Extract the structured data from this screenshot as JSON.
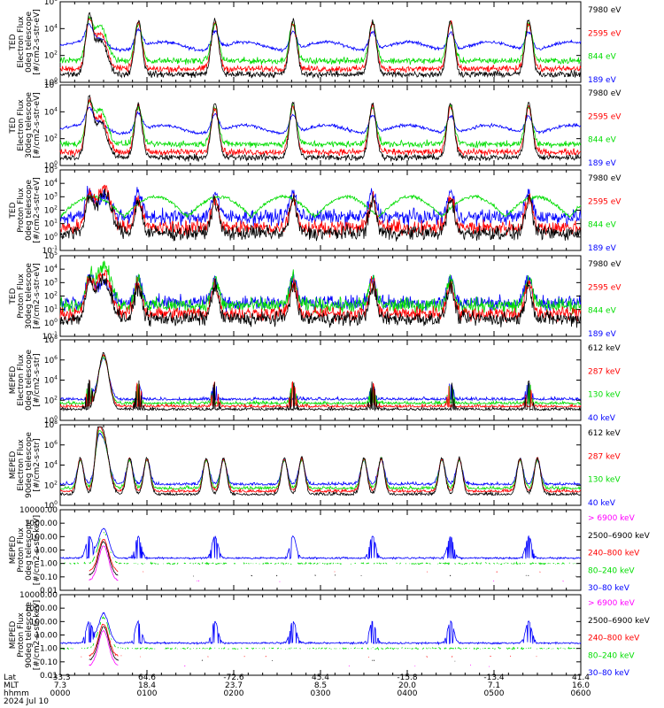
{
  "colors": {
    "black": "#000000",
    "blue": "#0000ff",
    "red": "#ff0000",
    "green": "#00dd00",
    "magenta": "#ff00ff"
  },
  "panels": [
    {
      "ylabel": [
        "TED",
        "Electron Flux",
        "0deg telescope",
        "[#/cm2-s-str-eV]"
      ],
      "scale": "log",
      "ylim_exp": [
        0,
        6
      ],
      "ticks": [
        "10^0",
        "10^2",
        "10^4",
        "10^6"
      ],
      "legend": [
        {
          "text": "7980 eV",
          "color": "#000000"
        },
        {
          "text": "2595 eV",
          "color": "#ff0000"
        },
        {
          "text": "844 eV",
          "color": "#00dd00"
        },
        {
          "text": "189 eV",
          "color": "#0000ff"
        }
      ]
    },
    {
      "ylabel": [
        "TED",
        "Electron Flux",
        "30deg telescope",
        "[#/cm2-s-str-eV]"
      ],
      "scale": "log",
      "ylim_exp": [
        0,
        6
      ],
      "ticks": [
        "10^0",
        "10^2",
        "10^4",
        "10^6"
      ],
      "legend": [
        {
          "text": "7980 eV",
          "color": "#000000"
        },
        {
          "text": "2595 eV",
          "color": "#ff0000"
        },
        {
          "text": "844 eV",
          "color": "#00dd00"
        },
        {
          "text": "189 eV",
          "color": "#0000ff"
        }
      ]
    },
    {
      "ylabel": [
        "TED",
        "Proton Flux",
        "0deg telescope",
        "[#/cm2-s-str-eV]"
      ],
      "scale": "log",
      "ylim_exp": [
        -1,
        5
      ],
      "ticks": [
        "10^-1",
        "10^0",
        "10^1",
        "10^2",
        "10^3",
        "10^4",
        "10^5"
      ],
      "legend": [
        {
          "text": "7980 eV",
          "color": "#000000"
        },
        {
          "text": "2595 eV",
          "color": "#ff0000"
        },
        {
          "text": "844 eV",
          "color": "#00dd00"
        },
        {
          "text": "189 eV",
          "color": "#0000ff"
        }
      ]
    },
    {
      "ylabel": [
        "TED",
        "Proton Flux",
        "30deg telescope",
        "[#/cm2-s-str-eV]"
      ],
      "scale": "log",
      "ylim_exp": [
        -1,
        5
      ],
      "ticks": [
        "10^-1",
        "10^0",
        "10^1",
        "10^2",
        "10^3",
        "10^4",
        "10^5"
      ],
      "legend": [
        {
          "text": "7980 eV",
          "color": "#000000"
        },
        {
          "text": "2595 eV",
          "color": "#ff0000"
        },
        {
          "text": "844 eV",
          "color": "#00dd00"
        },
        {
          "text": "189 eV",
          "color": "#0000ff"
        }
      ]
    },
    {
      "ylabel": [
        "MEPED",
        "Electron Flux",
        "0deg telescope",
        "[#/cm2-s-str]"
      ],
      "scale": "log",
      "ylim_exp": [
        0,
        8
      ],
      "ticks": [
        "10^0",
        "10^2",
        "10^4",
        "10^6",
        "10^8"
      ],
      "legend": [
        {
          "text": "612 keV",
          "color": "#000000"
        },
        {
          "text": "287 keV",
          "color": "#ff0000"
        },
        {
          "text": "130 keV",
          "color": "#00dd00"
        },
        {
          "text": "40 keV",
          "color": "#0000ff"
        }
      ]
    },
    {
      "ylabel": [
        "MEPED",
        "Electron Flux",
        "90deg telescope",
        "[#/cm2-s-str]"
      ],
      "scale": "log",
      "ylim_exp": [
        0,
        8
      ],
      "ticks": [
        "10^0",
        "10^2",
        "10^4",
        "10^6",
        "10^8"
      ],
      "legend": [
        {
          "text": "612 keV",
          "color": "#000000"
        },
        {
          "text": "287 keV",
          "color": "#ff0000"
        },
        {
          "text": "130 keV",
          "color": "#00dd00"
        },
        {
          "text": "40 keV",
          "color": "#0000ff"
        }
      ]
    },
    {
      "ylabel": [
        "MEPED",
        "Proton Flux",
        "0deg telescope",
        "[#/cm2-s-str-keV]"
      ],
      "scale": "log",
      "ylim_exp": [
        -2,
        4
      ],
      "ticks": [
        "0.01",
        "0.10",
        "1.00",
        "10.00",
        "100.00",
        "1000.00",
        "10000.00"
      ],
      "legend": [
        {
          "text": "> 6900 keV",
          "color": "#ff00ff"
        },
        {
          "text": "2500–6900 keV",
          "color": "#000000"
        },
        {
          "text": "240–800 keV",
          "color": "#ff0000"
        },
        {
          "text": "80–240 keV",
          "color": "#00dd00"
        },
        {
          "text": "30–80 keV",
          "color": "#0000ff"
        }
      ]
    },
    {
      "ylabel": [
        "MEPED",
        "Proton Flux",
        "90deg telescope",
        "[#/cm2-s-str-keV]"
      ],
      "scale": "log",
      "ylim_exp": [
        -2,
        4
      ],
      "ticks": [
        "0.01",
        "0.10",
        "1.00",
        "10.00",
        "100.00",
        "1000.00",
        "10000.00"
      ],
      "legend": [
        {
          "text": "> 6900 keV",
          "color": "#ff00ff"
        },
        {
          "text": "2500–6900 keV",
          "color": "#000000"
        },
        {
          "text": "240–800 keV",
          "color": "#ff0000"
        },
        {
          "text": "80–240 keV",
          "color": "#00dd00"
        },
        {
          "text": "30–80 keV",
          "color": "#0000ff"
        }
      ]
    }
  ],
  "xaxis": {
    "row_labels": [
      "Lat",
      "MLT",
      "hhmm",
      "2024 Jul 10"
    ],
    "ticks": [
      {
        "lat": "-33.3",
        "mlt": "7.3",
        "hhmm": "0000"
      },
      {
        "lat": "64.6",
        "mlt": "18.4",
        "hhmm": "0100"
      },
      {
        "lat": "-72.6",
        "mlt": "23.7",
        "hhmm": "0200"
      },
      {
        "lat": "45.4",
        "mlt": "8.5",
        "hhmm": "0300"
      },
      {
        "lat": "-15.8",
        "mlt": "20.0",
        "hhmm": "0400"
      },
      {
        "lat": "-13.4",
        "mlt": "7.1",
        "hhmm": "0500"
      },
      {
        "lat": "41.4",
        "mlt": "16.0",
        "hhmm": "0600"
      }
    ]
  },
  "chart_data": {
    "type": "line",
    "x_unit": "hhmm",
    "xlim": [
      "0000",
      "0600"
    ],
    "passes_hhmm": [
      "0020",
      "0054",
      "0147",
      "0241",
      "0336",
      "0430",
      "0524"
    ],
    "note_series": "per-panel series listed in panels[].legend"
  }
}
